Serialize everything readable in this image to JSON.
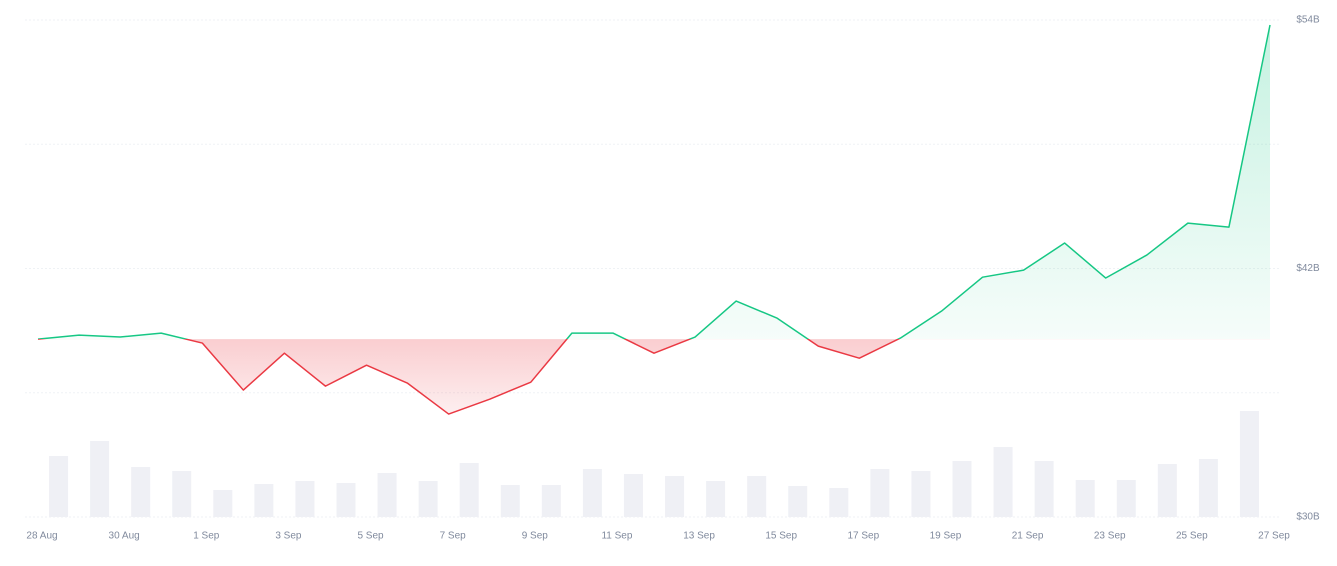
{
  "chart_data": {
    "type": "line",
    "categories": [
      "28 Aug",
      null,
      "30 Aug",
      null,
      "1 Sep",
      null,
      "3 Sep",
      null,
      "5 Sep",
      null,
      "7 Sep",
      null,
      "9 Sep",
      null,
      "11 Sep",
      null,
      "13 Sep",
      null,
      "15 Sep",
      null,
      "17 Sep",
      null,
      "19 Sep",
      null,
      "21 Sep",
      null,
      "23 Sep",
      null,
      "25 Sep",
      null,
      "27 Sep"
    ],
    "values": [
      38.59,
      38.78,
      38.69,
      38.88,
      38.4,
      36.13,
      37.91,
      36.32,
      37.33,
      36.46,
      34.97,
      35.69,
      36.51,
      38.88,
      38.88,
      37.91,
      38.69,
      40.43,
      39.6,
      38.25,
      37.67,
      38.64,
      39.94,
      41.58,
      41.92,
      43.23,
      41.54,
      42.65,
      44.19,
      44.0,
      53.76
    ],
    "colors": {
      "up": "#16c784",
      "down": "#ea3943"
    },
    "ylim": [
      30,
      54
    ],
    "yticks": [
      {
        "value": 30,
        "label": "$30B"
      },
      {
        "value": 42,
        "label": "$42B"
      },
      {
        "value": 54,
        "label": "$54B"
      }
    ],
    "gridlines": [
      30,
      36,
      42,
      48,
      54
    ],
    "volume": {
      "color": "#eff0f5",
      "values": [
        61,
        76,
        50,
        46,
        27,
        33,
        36,
        34,
        44,
        36,
        54,
        32,
        32,
        48,
        43,
        41,
        36,
        41,
        31,
        29,
        48,
        46,
        56,
        70,
        56,
        37,
        37,
        53,
        58,
        63,
        106
      ]
    }
  }
}
